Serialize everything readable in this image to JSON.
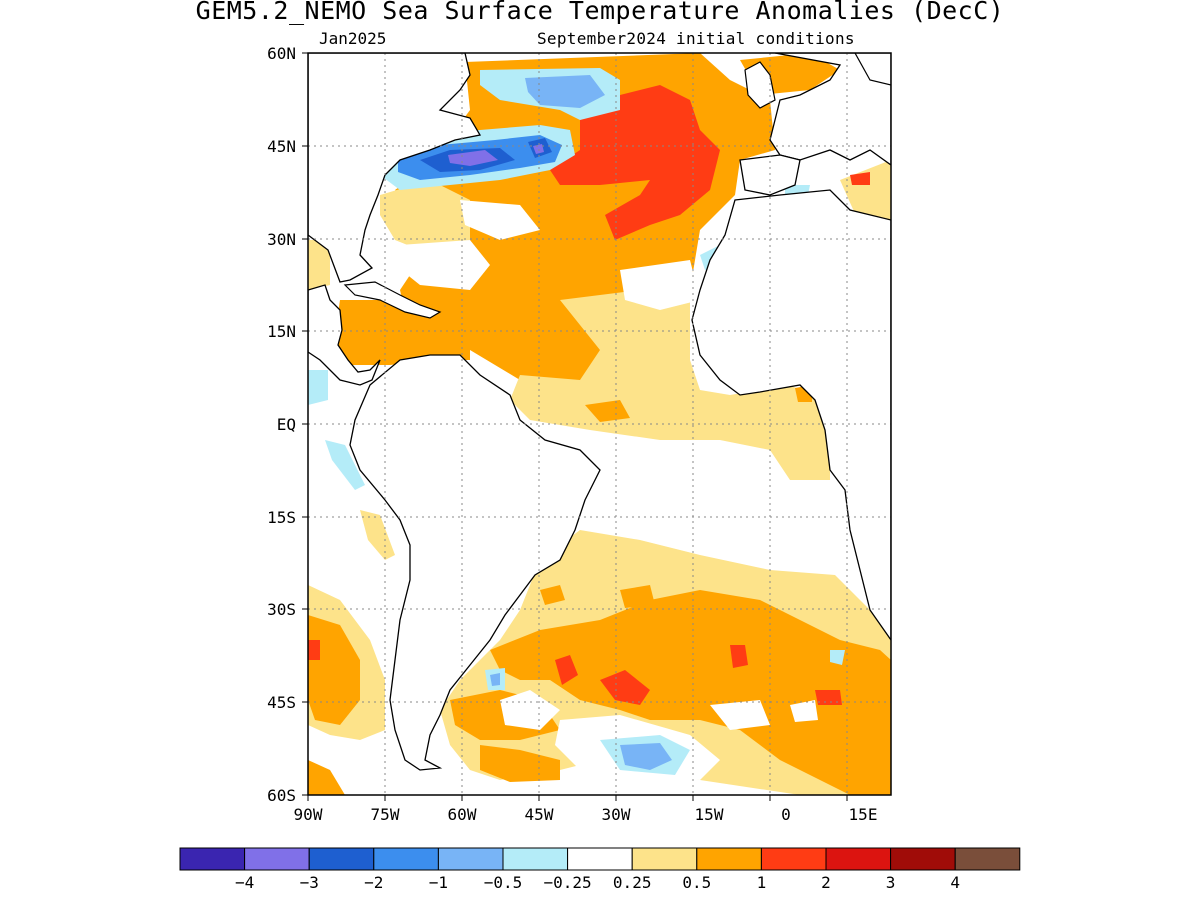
{
  "title": "GEM5.2_NEMO Sea Surface Temperature Anomalies (DecC)",
  "valid_month": "Jan2025",
  "init_label": "September2024 initial conditions",
  "lat_labels": [
    "60N",
    "45N",
    "30N",
    "15N",
    "EQ",
    "15S",
    "30S",
    "45S",
    "60S"
  ],
  "lon_labels": [
    "90W",
    "75W",
    "60W",
    "45W",
    "30W",
    "15W",
    "0",
    "15E"
  ],
  "colorbar": {
    "colors": [
      "#3a25b0",
      "#8070e8",
      "#1e5fd0",
      "#3c8eee",
      "#78b4f6",
      "#b4ecf8",
      "#ffffff",
      "#fde38a",
      "#ffa400",
      "#ff3c14",
      "#dc1410",
      "#a00c08",
      "#7a4e3a"
    ],
    "labels": [
      "−4",
      "−3",
      "−2",
      "−1",
      "−0.5",
      "−0.25",
      "0.25",
      "0.5",
      "1",
      "2",
      "3",
      "4"
    ]
  }
}
